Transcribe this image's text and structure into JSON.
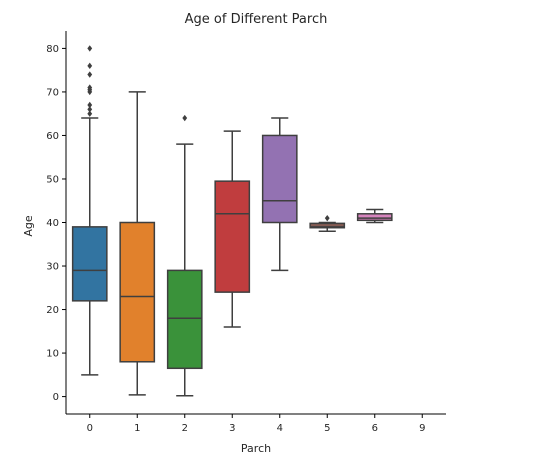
{
  "chart_data": {
    "type": "box",
    "title": "Age of Different Parch",
    "xlabel": "Parch",
    "ylabel": "Age",
    "ylim": [
      -4,
      84
    ],
    "yticks": [
      0,
      10,
      20,
      30,
      40,
      50,
      60,
      70,
      80
    ],
    "categories": [
      "0",
      "1",
      "2",
      "3",
      "4",
      "5",
      "6",
      "9"
    ],
    "boxes": [
      {
        "category": "0",
        "whisker_low": 5,
        "q1": 22,
        "median": 29,
        "q3": 39,
        "whisker_high": 64,
        "outliers": [
          65,
          66,
          67,
          70,
          70.5,
          71,
          74,
          76,
          80
        ],
        "color": "#3274a1"
      },
      {
        "category": "1",
        "whisker_low": 0.4,
        "q1": 8,
        "median": 23,
        "q3": 40,
        "whisker_high": 70,
        "outliers": [],
        "color": "#e1812c"
      },
      {
        "category": "2",
        "whisker_low": 0.2,
        "q1": 6.5,
        "median": 18,
        "q3": 29,
        "whisker_high": 58,
        "outliers": [
          64
        ],
        "color": "#3a923a"
      },
      {
        "category": "3",
        "whisker_low": 16,
        "q1": 24,
        "median": 42,
        "q3": 49.5,
        "whisker_high": 61,
        "outliers": [],
        "color": "#c03d3e"
      },
      {
        "category": "4",
        "whisker_low": 29,
        "q1": 40,
        "median": 45,
        "q3": 60,
        "whisker_high": 64,
        "outliers": [],
        "color": "#9372b2"
      },
      {
        "category": "5",
        "whisker_low": 38,
        "q1": 38.8,
        "median": 39,
        "q3": 39.8,
        "whisker_high": 40,
        "outliers": [
          41
        ],
        "color": "#845b53"
      },
      {
        "category": "6",
        "whisker_low": 40,
        "q1": 40.5,
        "median": 41,
        "q3": 42,
        "whisker_high": 43,
        "outliers": [],
        "color": "#d684bd"
      }
    ],
    "grid": false,
    "spines": [
      "left",
      "bottom"
    ]
  }
}
